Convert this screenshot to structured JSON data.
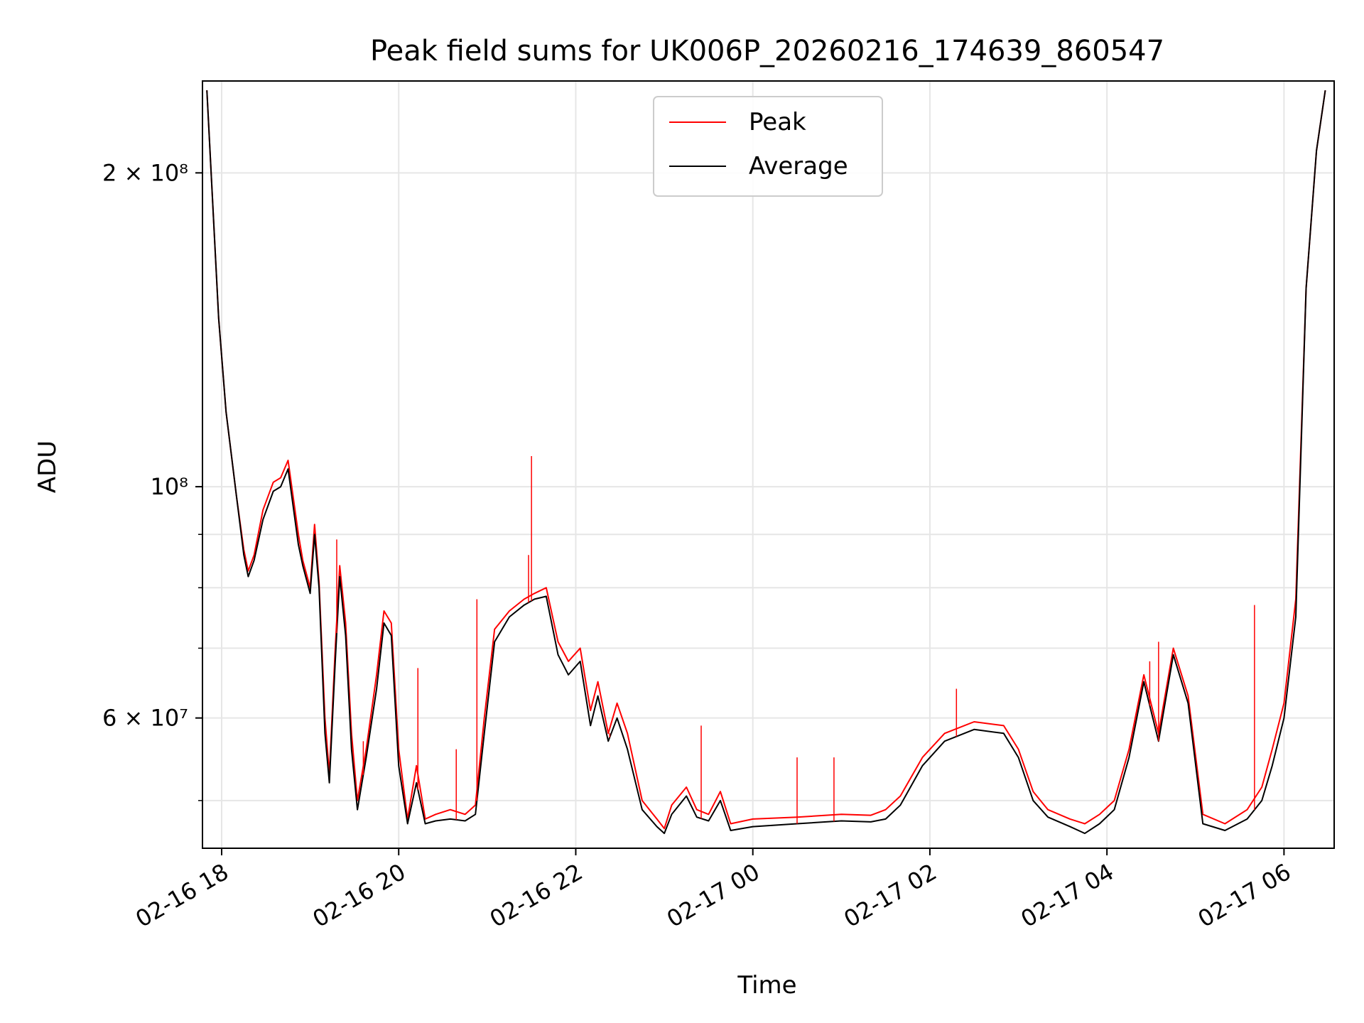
{
  "chart_data": {
    "type": "line",
    "title": "Peak field sums for UK006P_20260216_174639_860547",
    "xlabel": "Time",
    "ylabel": "ADU",
    "y_scale": "log",
    "xlim": [
      "2026-02-16 17:47",
      "2026-02-17 06:34"
    ],
    "ylim": [
      45000000,
      245000000
    ],
    "grid": true,
    "legend_position": "top-center",
    "x_ticks": [
      {
        "value": "2026-02-16 18:00",
        "label": "02-16 18"
      },
      {
        "value": "2026-02-16 20:00",
        "label": "02-16 20"
      },
      {
        "value": "2026-02-16 22:00",
        "label": "02-16 22"
      },
      {
        "value": "2026-02-17 00:00",
        "label": "02-17 00"
      },
      {
        "value": "2026-02-17 02:00",
        "label": "02-17 02"
      },
      {
        "value": "2026-02-17 04:00",
        "label": "02-17 04"
      },
      {
        "value": "2026-02-17 06:00",
        "label": "02-17 06"
      }
    ],
    "y_ticks": [
      {
        "value": 200000000,
        "label": "2 × 10⁸"
      },
      {
        "value": 100000000,
        "label": "10⁸"
      },
      {
        "value": 60000000,
        "label": "6 × 10⁷"
      }
    ],
    "y_minor_ticks": [
      50000000,
      70000000,
      80000000,
      90000000
    ],
    "series": [
      {
        "name": "Peak",
        "color": "#ff0000",
        "x": [
          "2026-02-16 17:50",
          "2026-02-16 17:58",
          "2026-02-16 18:03",
          "2026-02-16 18:10",
          "2026-02-16 18:15",
          "2026-02-16 18:18",
          "2026-02-16 18:22",
          "2026-02-16 18:28",
          "2026-02-16 18:35",
          "2026-02-16 18:40",
          "2026-02-16 18:45",
          "2026-02-16 18:52",
          "2026-02-16 18:55",
          "2026-02-16 19:00",
          "2026-02-16 19:03",
          "2026-02-16 19:06",
          "2026-02-16 19:10",
          "2026-02-16 19:13",
          "2026-02-16 19:17",
          "2026-02-16 19:20",
          "2026-02-16 19:24",
          "2026-02-16 19:28",
          "2026-02-16 19:32",
          "2026-02-16 19:38",
          "2026-02-16 19:45",
          "2026-02-16 19:50",
          "2026-02-16 19:55",
          "2026-02-16 20:00",
          "2026-02-16 20:06",
          "2026-02-16 20:12",
          "2026-02-16 20:18",
          "2026-02-16 20:25",
          "2026-02-16 20:35",
          "2026-02-16 20:45",
          "2026-02-16 20:52",
          "2026-02-16 20:58",
          "2026-02-16 21:05",
          "2026-02-16 21:15",
          "2026-02-16 21:25",
          "2026-02-16 21:32",
          "2026-02-16 21:40",
          "2026-02-16 21:48",
          "2026-02-16 21:55",
          "2026-02-16 22:03",
          "2026-02-16 22:10",
          "2026-02-16 22:15",
          "2026-02-16 22:22",
          "2026-02-16 22:28",
          "2026-02-16 22:35",
          "2026-02-16 22:45",
          "2026-02-16 22:55",
          "2026-02-16 23:00",
          "2026-02-16 23:05",
          "2026-02-16 23:15",
          "2026-02-16 23:22",
          "2026-02-16 23:30",
          "2026-02-16 23:38",
          "2026-02-16 23:45",
          "2026-02-17 00:00",
          "2026-02-17 00:30",
          "2026-02-17 01:00",
          "2026-02-17 01:20",
          "2026-02-17 01:30",
          "2026-02-17 01:40",
          "2026-02-17 01:55",
          "2026-02-17 02:10",
          "2026-02-17 02:30",
          "2026-02-17 02:50",
          "2026-02-17 03:00",
          "2026-02-17 03:10",
          "2026-02-17 03:20",
          "2026-02-17 03:35",
          "2026-02-17 03:45",
          "2026-02-17 03:55",
          "2026-02-17 04:05",
          "2026-02-17 04:15",
          "2026-02-17 04:25",
          "2026-02-17 04:35",
          "2026-02-17 04:45",
          "2026-02-17 04:55",
          "2026-02-17 05:05",
          "2026-02-17 05:20",
          "2026-02-17 05:35",
          "2026-02-17 05:45",
          "2026-02-17 05:52",
          "2026-02-17 06:00",
          "2026-02-17 06:08",
          "2026-02-17 06:15",
          "2026-02-17 06:22",
          "2026-02-17 06:28"
        ],
        "y": [
          240000000,
          145000000,
          118000000,
          98000000,
          87000000,
          83000000,
          86000000,
          95000000,
          101000000,
          102000000,
          106000000,
          90000000,
          85000000,
          80000000,
          92000000,
          81000000,
          60000000,
          53000000,
          70000000,
          84000000,
          74000000,
          58000000,
          50000000,
          56000000,
          66000000,
          76000000,
          74000000,
          56000000,
          48000000,
          54000000,
          48000000,
          48500000,
          49000000,
          48500000,
          49500000,
          60000000,
          73000000,
          76000000,
          78000000,
          79000000,
          80000000,
          71000000,
          68000000,
          70000000,
          61000000,
          65000000,
          58000000,
          62000000,
          58000000,
          50000000,
          48000000,
          47000000,
          49500000,
          51500000,
          49000000,
          48500000,
          51000000,
          47500000,
          48000000,
          48200000,
          48500000,
          48400000,
          49000000,
          50500000,
          55000000,
          58000000,
          59500000,
          59000000,
          56000000,
          51000000,
          49000000,
          48000000,
          47500000,
          48500000,
          50000000,
          56000000,
          66000000,
          58000000,
          70000000,
          63000000,
          48500000,
          47500000,
          49000000,
          51500000,
          56000000,
          62000000,
          78000000,
          155000000,
          210000000,
          240000000
        ]
      },
      {
        "name": "Average",
        "color": "#000000",
        "x": [
          "2026-02-16 17:50",
          "2026-02-16 17:58",
          "2026-02-16 18:03",
          "2026-02-16 18:10",
          "2026-02-16 18:15",
          "2026-02-16 18:18",
          "2026-02-16 18:22",
          "2026-02-16 18:28",
          "2026-02-16 18:35",
          "2026-02-16 18:40",
          "2026-02-16 18:45",
          "2026-02-16 18:52",
          "2026-02-16 18:55",
          "2026-02-16 19:00",
          "2026-02-16 19:03",
          "2026-02-16 19:06",
          "2026-02-16 19:10",
          "2026-02-16 19:13",
          "2026-02-16 19:17",
          "2026-02-16 19:20",
          "2026-02-16 19:24",
          "2026-02-16 19:28",
          "2026-02-16 19:32",
          "2026-02-16 19:38",
          "2026-02-16 19:45",
          "2026-02-16 19:50",
          "2026-02-16 19:55",
          "2026-02-16 20:00",
          "2026-02-16 20:06",
          "2026-02-16 20:12",
          "2026-02-16 20:18",
          "2026-02-16 20:25",
          "2026-02-16 20:35",
          "2026-02-16 20:45",
          "2026-02-16 20:52",
          "2026-02-16 20:58",
          "2026-02-16 21:05",
          "2026-02-16 21:15",
          "2026-02-16 21:25",
          "2026-02-16 21:32",
          "2026-02-16 21:40",
          "2026-02-16 21:48",
          "2026-02-16 21:55",
          "2026-02-16 22:03",
          "2026-02-16 22:10",
          "2026-02-16 22:15",
          "2026-02-16 22:22",
          "2026-02-16 22:28",
          "2026-02-16 22:35",
          "2026-02-16 22:45",
          "2026-02-16 22:55",
          "2026-02-16 23:00",
          "2026-02-16 23:05",
          "2026-02-16 23:15",
          "2026-02-16 23:22",
          "2026-02-16 23:30",
          "2026-02-16 23:38",
          "2026-02-16 23:45",
          "2026-02-17 00:00",
          "2026-02-17 00:30",
          "2026-02-17 01:00",
          "2026-02-17 01:20",
          "2026-02-17 01:30",
          "2026-02-17 01:40",
          "2026-02-17 01:55",
          "2026-02-17 02:10",
          "2026-02-17 02:30",
          "2026-02-17 02:50",
          "2026-02-17 03:00",
          "2026-02-17 03:10",
          "2026-02-17 03:20",
          "2026-02-17 03:35",
          "2026-02-17 03:45",
          "2026-02-17 03:55",
          "2026-02-17 04:05",
          "2026-02-17 04:15",
          "2026-02-17 04:25",
          "2026-02-17 04:35",
          "2026-02-17 04:45",
          "2026-02-17 04:55",
          "2026-02-17 05:05",
          "2026-02-17 05:20",
          "2026-02-17 05:35",
          "2026-02-17 05:45",
          "2026-02-17 05:52",
          "2026-02-17 06:00",
          "2026-02-17 06:08",
          "2026-02-17 06:15",
          "2026-02-17 06:22",
          "2026-02-17 06:28"
        ],
        "y": [
          240000000,
          145000000,
          118000000,
          98000000,
          86000000,
          82000000,
          85000000,
          93000000,
          99000000,
          100000000,
          104000000,
          88000000,
          84000000,
          79000000,
          90000000,
          80000000,
          58000000,
          52000000,
          68000000,
          82000000,
          72000000,
          56000000,
          49000000,
          55000000,
          64000000,
          74000000,
          72000000,
          54000000,
          47500000,
          52000000,
          47500000,
          47800000,
          48000000,
          47800000,
          48500000,
          58000000,
          71000000,
          75000000,
          77000000,
          78000000,
          78500000,
          69000000,
          66000000,
          68000000,
          59000000,
          63000000,
          57000000,
          60000000,
          56000000,
          49000000,
          47200000,
          46500000,
          48500000,
          50500000,
          48200000,
          47800000,
          50000000,
          46800000,
          47200000,
          47500000,
          47800000,
          47700000,
          48000000,
          49500000,
          54000000,
          57000000,
          58500000,
          58000000,
          55000000,
          50000000,
          48200000,
          47200000,
          46500000,
          47500000,
          49000000,
          55000000,
          65000000,
          57000000,
          69000000,
          62000000,
          47500000,
          46800000,
          48000000,
          50000000,
          54000000,
          60000000,
          75000000,
          155000000,
          210000000,
          240000000
        ]
      }
    ],
    "spikes": [
      {
        "x": "2026-02-16 21:30",
        "y": 107000000,
        "series": "Peak"
      },
      {
        "x": "2026-02-16 20:53",
        "y": 78000000,
        "series": "Peak"
      },
      {
        "x": "2026-02-16 21:28",
        "y": 86000000,
        "series": "Peak"
      },
      {
        "x": "2026-02-16 20:13",
        "y": 67000000,
        "series": "Peak"
      },
      {
        "x": "2026-02-16 19:18",
        "y": 89000000,
        "series": "Peak"
      },
      {
        "x": "2026-02-16 19:36",
        "y": 57000000,
        "series": "Peak"
      },
      {
        "x": "2026-02-16 20:39",
        "y": 56000000,
        "series": "Peak"
      },
      {
        "x": "2026-02-16 22:23",
        "y": 58000000,
        "series": "Peak"
      },
      {
        "x": "2026-02-16 23:25",
        "y": 59000000,
        "series": "Peak"
      },
      {
        "x": "2026-02-17 00:30",
        "y": 55000000,
        "series": "Peak"
      },
      {
        "x": "2026-02-17 00:55",
        "y": 55000000,
        "series": "Peak"
      },
      {
        "x": "2026-02-17 02:18",
        "y": 64000000,
        "series": "Peak"
      },
      {
        "x": "2026-02-17 04:29",
        "y": 68000000,
        "series": "Peak"
      },
      {
        "x": "2026-02-17 04:35",
        "y": 71000000,
        "series": "Peak"
      },
      {
        "x": "2026-02-17 05:40",
        "y": 77000000,
        "series": "Peak"
      }
    ]
  }
}
